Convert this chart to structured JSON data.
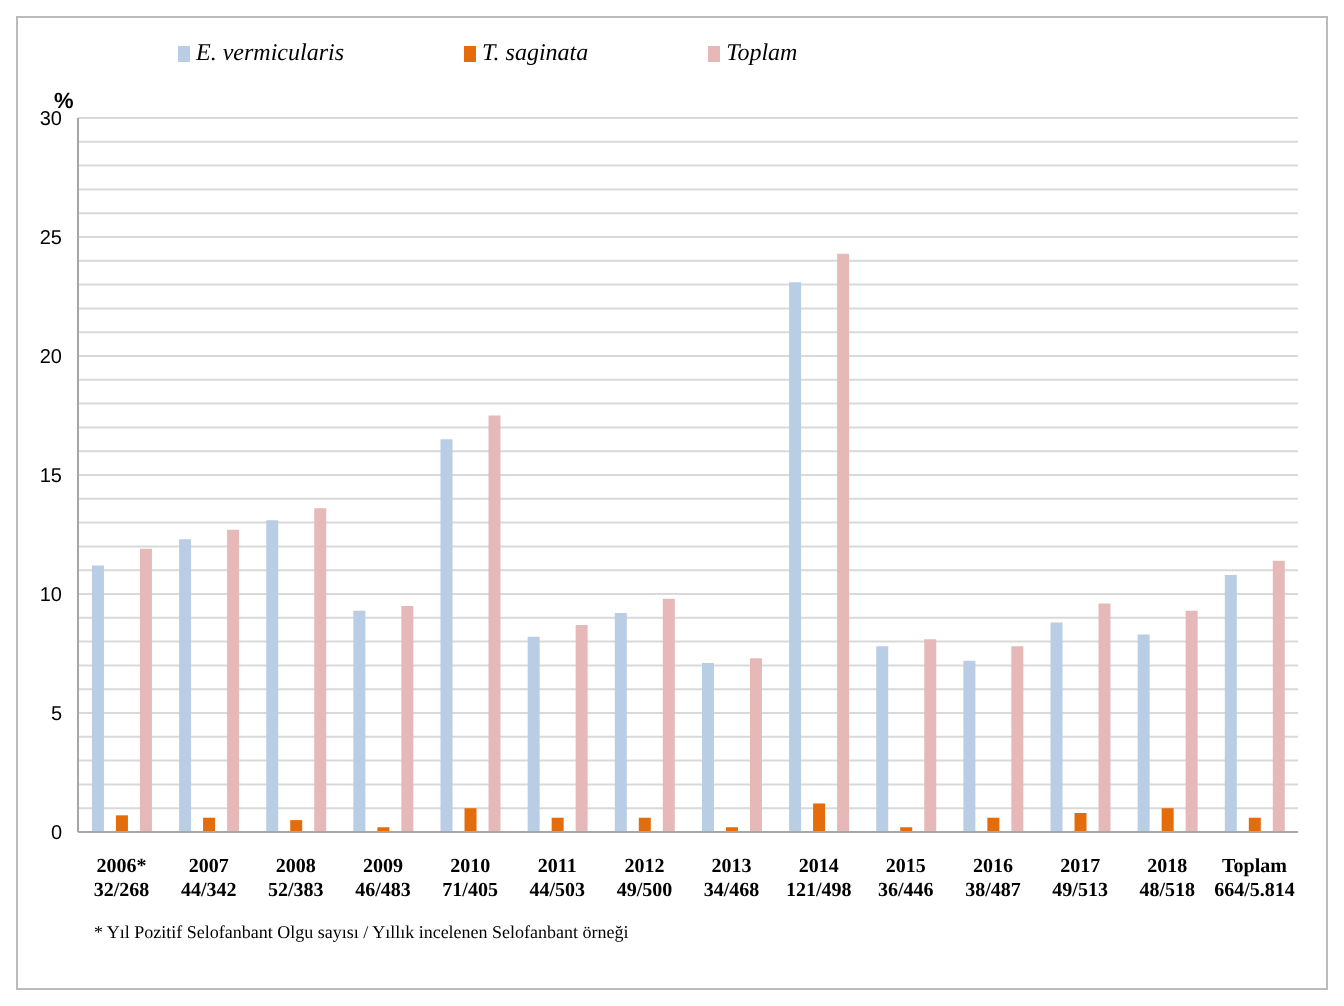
{
  "chart_data": {
    "type": "bar",
    "ylabel": "%",
    "categories": [
      "2006*\n32/268",
      "2007\n44/342",
      "2008\n52/383",
      "2009\n46/483",
      "2010\n71/405",
      "2011\n44/503",
      "2012\n49/500",
      "2013\n34/468",
      "2014\n121/498",
      "2015\n36/446",
      "2016\n38/487",
      "2017\n49/513",
      "2018\n48/518",
      "Toplam\n664/5.814"
    ],
    "series": [
      {
        "name": "E. vermicularis",
        "color": "#b9cde5",
        "values": [
          11.2,
          12.3,
          13.1,
          9.3,
          16.5,
          8.2,
          9.2,
          7.1,
          23.1,
          7.8,
          7.2,
          8.8,
          8.3,
          10.8
        ]
      },
      {
        "name": "T. saginata",
        "color": "#e46c0a",
        "values": [
          0.7,
          0.6,
          0.5,
          0.2,
          1.0,
          0.6,
          0.6,
          0.2,
          1.2,
          0.2,
          0.6,
          0.8,
          1.0,
          0.6
        ]
      },
      {
        "name": "Toplam",
        "color": "#e6b9b8",
        "values": [
          11.9,
          12.7,
          13.6,
          9.5,
          17.5,
          8.7,
          9.8,
          7.3,
          24.3,
          8.1,
          7.8,
          9.6,
          9.3,
          11.4
        ]
      }
    ],
    "ylim": [
      0,
      30
    ],
    "yticks": [
      0,
      {
        "value": 1,
        "label": null
      },
      {
        "value": 2,
        "label": null
      },
      {
        "value": 3,
        "label": null
      },
      {
        "value": 4,
        "label": null
      },
      5,
      {
        "value": 6,
        "label": null
      },
      {
        "value": 7,
        "label": null
      },
      {
        "value": 8,
        "label": null
      },
      {
        "value": 9,
        "label": null
      },
      10,
      {
        "value": 11,
        "label": null
      },
      {
        "value": 12,
        "label": null
      },
      {
        "value": 13,
        "label": null
      },
      {
        "value": 14,
        "label": null
      },
      15,
      {
        "value": 16,
        "label": null
      },
      {
        "value": 17,
        "label": null
      },
      {
        "value": 18,
        "label": null
      },
      {
        "value": 19,
        "label": null
      },
      20,
      {
        "value": 21,
        "label": null
      },
      {
        "value": 22,
        "label": null
      },
      {
        "value": 23,
        "label": null
      },
      {
        "value": 24,
        "label": null
      },
      25,
      {
        "value": 26,
        "label": null
      },
      {
        "value": 27,
        "label": null
      },
      {
        "value": 28,
        "label": null
      },
      {
        "value": 29,
        "label": null
      },
      30
    ],
    "grid": "y",
    "legend": "top",
    "annotations": [
      "* Yıl Pozitif Selofanbant Olgu sayısı / Yıllık incelenen Selofanbant örneği"
    ]
  }
}
